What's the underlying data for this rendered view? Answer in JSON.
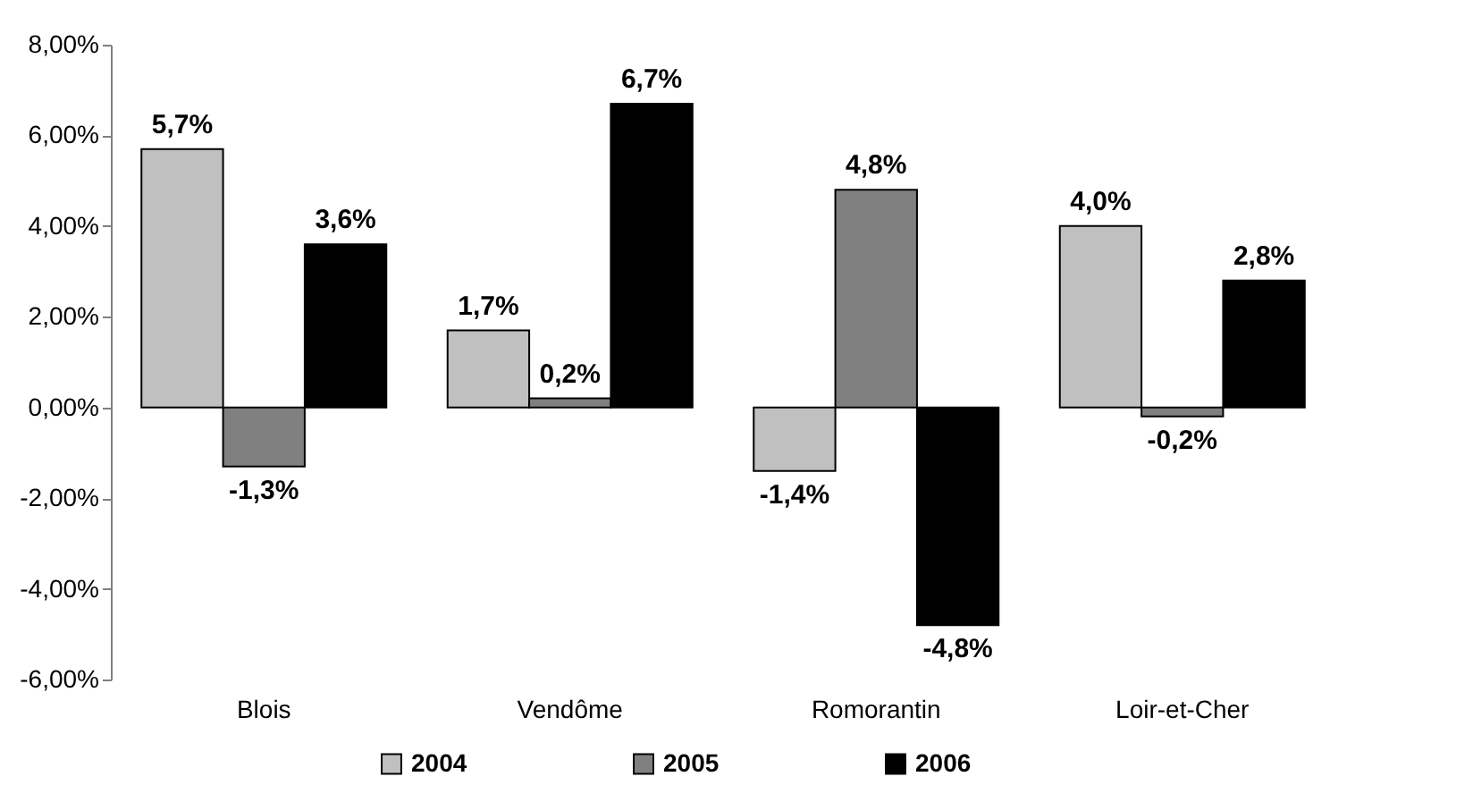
{
  "chart_data": {
    "type": "bar",
    "categories": [
      "Blois",
      "Vendôme",
      "Romorantin",
      "Loir-et-Cher"
    ],
    "series": [
      {
        "name": "2004",
        "color": "#c0c0c0",
        "values": [
          5.7,
          1.7,
          -1.4,
          4.0
        ],
        "value_labels": [
          "5,7%",
          "1,7%",
          "-1,4%",
          "4,0%"
        ]
      },
      {
        "name": "2005",
        "color": "#808080",
        "values": [
          -1.3,
          0.2,
          4.8,
          -0.2
        ],
        "value_labels": [
          "-1,3%",
          "0,2%",
          "4,8%",
          "-0,2%"
        ]
      },
      {
        "name": "2006",
        "color": "#000000",
        "values": [
          3.6,
          6.7,
          -4.8,
          2.8
        ],
        "value_labels": [
          "3,6%",
          "6,7%",
          "-4,8%",
          "2,8%"
        ]
      }
    ],
    "ylim": [
      -6,
      8
    ],
    "yticks": [
      {
        "value": -6,
        "label": "-6,00%"
      },
      {
        "value": -4,
        "label": "-4,00%"
      },
      {
        "value": -2,
        "label": "-2,00%"
      },
      {
        "value": 0,
        "label": "0,00%"
      },
      {
        "value": 2,
        "label": "2,00%"
      },
      {
        "value": 4,
        "label": "4,00%"
      },
      {
        "value": 6,
        "label": "6,00%"
      },
      {
        "value": 8,
        "label": "8,00%"
      }
    ],
    "grid": false,
    "legend": "bottom"
  }
}
